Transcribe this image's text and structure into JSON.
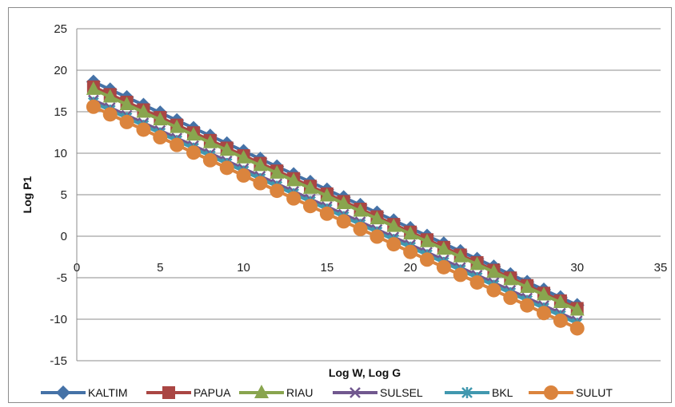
{
  "chart_data": {
    "type": "line",
    "title": "",
    "xlabel": "Log W, Log G",
    "ylabel": "Log P1",
    "xlim": [
      0,
      35
    ],
    "ylim": [
      -15,
      25
    ],
    "x_ticks": [
      0,
      5,
      10,
      15,
      20,
      25,
      30,
      35
    ],
    "y_ticks": [
      25,
      20,
      15,
      10,
      5,
      0,
      -5,
      -10,
      -15
    ],
    "grid": "horizontal",
    "legend": "bottom",
    "series": [
      {
        "name": "KALTIM",
        "color": "#4572a7",
        "marker": "diamond",
        "start": 18.6,
        "end": -8.3
      },
      {
        "name": "PAPUA",
        "color": "#aa4643",
        "marker": "square",
        "start": 18.0,
        "end": -8.7
      },
      {
        "name": "RIAU",
        "color": "#89a54e",
        "marker": "triangle",
        "start": 17.7,
        "end": -8.9
      },
      {
        "name": "SULSEL",
        "color": "#71588f",
        "marker": "x",
        "start": 16.4,
        "end": -10.2
      },
      {
        "name": "BKL",
        "color": "#4198af",
        "marker": "star",
        "start": 16.1,
        "end": -10.5
      },
      {
        "name": "SULUT",
        "color": "#db843d",
        "marker": "circle",
        "start": 15.6,
        "end": -11.1
      }
    ],
    "x": [
      1,
      2,
      3,
      4,
      5,
      6,
      7,
      8,
      9,
      10,
      11,
      12,
      13,
      14,
      15,
      16,
      17,
      18,
      19,
      20,
      21,
      22,
      23,
      24,
      25,
      26,
      27,
      28,
      29,
      30
    ]
  }
}
